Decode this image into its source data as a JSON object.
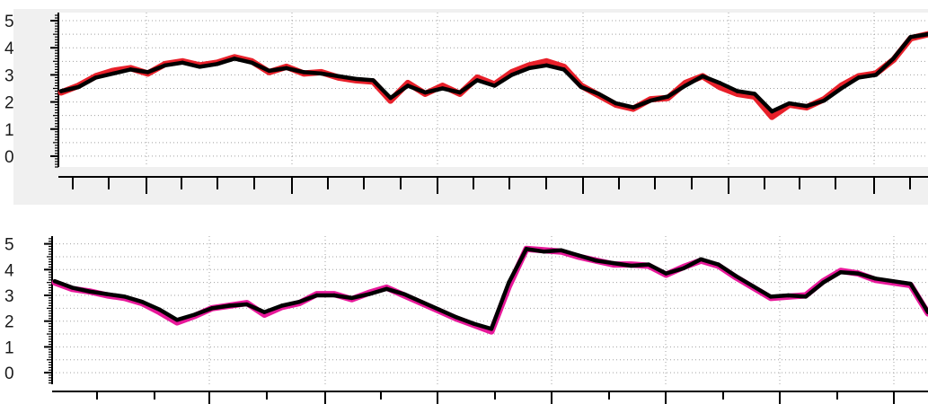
{
  "colors": {
    "panel_background": "#f0f0f0",
    "plot_background": "#ffffff",
    "grid": "#a0a0a0",
    "axis": "#000000",
    "series_main": "#000000",
    "series_top_shadow": "#e8202a",
    "series_bottom_shadow": "#e8189a"
  },
  "chart_data": [
    {
      "type": "line",
      "title": "",
      "xlabel": "",
      "ylabel": "",
      "ylim": [
        -0.4,
        5.3
      ],
      "yticks": [
        "0",
        "1",
        "2",
        "3",
        "4",
        "5"
      ],
      "grid": true,
      "legend": "none",
      "x": [
        0,
        2,
        4,
        6,
        8,
        10,
        12,
        14,
        16,
        18,
        20,
        22,
        24,
        26,
        28,
        30,
        32,
        34,
        36,
        38,
        40,
        42,
        44,
        46,
        48,
        50,
        52,
        54,
        56,
        58,
        60,
        62,
        64,
        66,
        68,
        70,
        72,
        74,
        76,
        78,
        80,
        82,
        84,
        86,
        88,
        90,
        92,
        94,
        96,
        98,
        100
      ],
      "series": [
        {
          "values": [
            2.4,
            2.55,
            2.9,
            3.05,
            3.2,
            3.1,
            3.35,
            3.45,
            3.3,
            3.4,
            3.6,
            3.45,
            3.15,
            3.25,
            3.1,
            3.05,
            2.95,
            2.85,
            2.8,
            2.15,
            2.6,
            2.35,
            2.5,
            2.35,
            2.8,
            2.6,
            3.0,
            3.25,
            3.35,
            3.2,
            2.55,
            2.3,
            1.95,
            1.8,
            2.05,
            2.2,
            2.6,
            2.95,
            2.7,
            2.4,
            2.3,
            1.65,
            1.95,
            1.85,
            2.05,
            2.5,
            2.9,
            3.0,
            3.6,
            4.4,
            4.5
          ]
        },
        {
          "values": [
            2.35,
            2.6,
            2.95,
            3.15,
            3.25,
            3.05,
            3.4,
            3.5,
            3.35,
            3.45,
            3.65,
            3.5,
            3.1,
            3.3,
            3.05,
            3.1,
            2.9,
            2.8,
            2.75,
            2.05,
            2.7,
            2.3,
            2.6,
            2.3,
            2.9,
            2.65,
            3.1,
            3.35,
            3.5,
            3.3,
            2.6,
            2.25,
            1.9,
            1.75,
            2.1,
            2.15,
            2.7,
            2.95,
            2.55,
            2.3,
            2.2,
            1.45,
            1.9,
            1.8,
            2.1,
            2.6,
            2.95,
            3.05,
            3.55,
            4.35,
            4.5
          ]
        }
      ]
    },
    {
      "type": "line",
      "title": "",
      "xlabel": "",
      "ylabel": "",
      "ylim": [
        -0.45,
        5.3
      ],
      "yticks": [
        "0",
        "1",
        "2",
        "3",
        "4",
        "5"
      ],
      "grid": true,
      "legend": "none",
      "x": [
        0,
        2,
        4,
        6,
        8,
        10,
        12,
        14,
        16,
        18,
        20,
        22,
        24,
        26,
        28,
        30,
        32,
        34,
        36,
        38,
        40,
        42,
        44,
        46,
        48,
        50,
        52,
        54,
        56,
        58,
        60,
        62,
        64,
        66,
        68,
        70,
        72,
        74,
        76,
        78,
        80,
        82,
        84,
        86,
        88,
        90,
        92,
        94,
        96,
        98,
        100
      ],
      "series": [
        {
          "values": [
            3.55,
            3.3,
            3.15,
            3.05,
            2.95,
            2.75,
            2.45,
            2.05,
            2.25,
            2.5,
            2.6,
            2.65,
            2.35,
            2.6,
            2.75,
            3.0,
            3.0,
            2.9,
            3.05,
            3.25,
            3.05,
            2.75,
            2.45,
            2.15,
            1.9,
            1.7,
            3.5,
            4.8,
            4.7,
            4.75,
            4.55,
            4.35,
            4.25,
            4.15,
            4.2,
            3.85,
            4.05,
            4.4,
            4.2,
            3.75,
            3.35,
            2.95,
            3.0,
            2.95,
            3.5,
            3.9,
            3.85,
            3.65,
            3.55,
            3.45,
            2.35
          ]
        },
        {
          "values": [
            3.5,
            3.25,
            3.15,
            3.0,
            2.9,
            2.7,
            2.35,
            1.95,
            2.2,
            2.5,
            2.6,
            2.7,
            2.25,
            2.55,
            2.7,
            3.05,
            3.05,
            2.85,
            3.1,
            3.3,
            3.0,
            2.7,
            2.4,
            2.1,
            1.85,
            1.6,
            3.35,
            4.8,
            4.75,
            4.7,
            4.5,
            4.35,
            4.2,
            4.2,
            4.15,
            3.8,
            4.1,
            4.35,
            4.15,
            3.7,
            3.3,
            2.9,
            2.95,
            3.0,
            3.55,
            3.95,
            3.85,
            3.6,
            3.5,
            3.4,
            2.3
          ]
        }
      ]
    }
  ]
}
